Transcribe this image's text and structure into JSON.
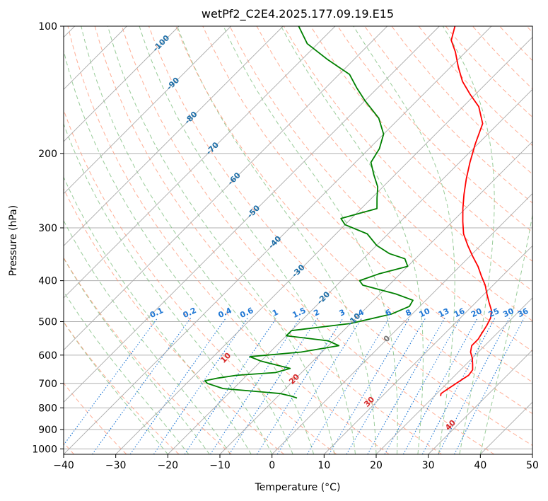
{
  "chart_data": {
    "type": "line",
    "title": "wetPf2_C2E4.2025.177.09.19.E15",
    "xlabel": "Temperature (°C)",
    "ylabel": "Pressure (hPa)",
    "xlim": [
      -40,
      50
    ],
    "ylim": [
      1030,
      100
    ],
    "y_scale": "log",
    "x_ticks": [
      -40,
      -30,
      -20,
      -10,
      0,
      10,
      20,
      30,
      40,
      50
    ],
    "y_ticks": [
      100,
      200,
      300,
      400,
      500,
      600,
      700,
      800,
      900,
      1000
    ],
    "grid": true,
    "skew_degrees": 45,
    "colors": {
      "temperature": "#ff0000",
      "dewpoint": "#008000",
      "isotherm": "#aaaaaa",
      "dry_adiabat": "#ff9a7a",
      "moist_adiabat": "#7fbf7f",
      "mixing_ratio": "#1f77d4",
      "isotherm_label": "#1f6fa8",
      "dry_adiabat_label": "#d62728"
    },
    "series": [
      {
        "points": [
          [
            21.2,
            750
          ],
          [
            20.8,
            740
          ],
          [
            21.0,
            730
          ],
          [
            21.5,
            710
          ],
          [
            22.0,
            690
          ],
          [
            22.6,
            670
          ],
          [
            22.3,
            650
          ],
          [
            21.2,
            630
          ],
          [
            20.0,
            610
          ],
          [
            18.5,
            590
          ],
          [
            17.5,
            570
          ],
          [
            17.5,
            550
          ],
          [
            17.0,
            530
          ],
          [
            16.5,
            510
          ],
          [
            15.8,
            490
          ],
          [
            14.5,
            470
          ],
          [
            12.5,
            450
          ],
          [
            10.5,
            430
          ],
          [
            8.5,
            410
          ],
          [
            6.0,
            390
          ],
          [
            3.5,
            370
          ],
          [
            0.5,
            350
          ],
          [
            -2.5,
            330
          ],
          [
            -5.5,
            310
          ],
          [
            -8.0,
            290
          ],
          [
            -10.5,
            270
          ],
          [
            -13.0,
            250
          ],
          [
            -15.5,
            230
          ],
          [
            -18.0,
            210
          ],
          [
            -20.5,
            190
          ],
          [
            -23.0,
            170
          ],
          [
            -27.0,
            155
          ],
          [
            -31.0,
            145
          ],
          [
            -35.0,
            135
          ],
          [
            -38.5,
            125
          ],
          [
            -42.0,
            115
          ],
          [
            -45.0,
            108
          ],
          [
            -47.0,
            100
          ]
        ]
      },
      {
        "points": [
          [
            -6.0,
            758
          ],
          [
            -7.5,
            750
          ],
          [
            -10.0,
            740
          ],
          [
            -22.0,
            720
          ],
          [
            -26.0,
            700
          ],
          [
            -27.0,
            690
          ],
          [
            -25.0,
            680
          ],
          [
            -22.0,
            670
          ],
          [
            -15.0,
            660
          ],
          [
            -13.0,
            645
          ],
          [
            -20.0,
            620
          ],
          [
            -23.0,
            605
          ],
          [
            -14.0,
            590
          ],
          [
            -8.0,
            570
          ],
          [
            -11.0,
            555
          ],
          [
            -20.0,
            540
          ],
          [
            -20.0,
            525
          ],
          [
            -10.0,
            505
          ],
          [
            -4.0,
            480
          ],
          [
            -2.0,
            460
          ],
          [
            -2.5,
            445
          ],
          [
            -7.0,
            430
          ],
          [
            -15.0,
            410
          ],
          [
            -16.5,
            400
          ],
          [
            -14.0,
            385
          ],
          [
            -10.0,
            370
          ],
          [
            -12.0,
            355
          ],
          [
            -16.0,
            345
          ],
          [
            -20.0,
            330
          ],
          [
            -24.0,
            310
          ],
          [
            -30.0,
            295
          ],
          [
            -32.0,
            285
          ],
          [
            -27.0,
            270
          ],
          [
            -29.0,
            255
          ],
          [
            -31.0,
            240
          ],
          [
            -34.0,
            225
          ],
          [
            -37.0,
            210
          ],
          [
            -38.0,
            195
          ],
          [
            -40.0,
            180
          ],
          [
            -44.0,
            165
          ],
          [
            -50.0,
            150
          ],
          [
            -54.0,
            140
          ],
          [
            -58.0,
            130
          ],
          [
            -65.0,
            120
          ],
          [
            -72.0,
            110
          ],
          [
            -77.0,
            100
          ]
        ]
      }
    ],
    "isotherm_labels": [
      {
        "text": "-100",
        "t": -100,
        "p": 110
      },
      {
        "text": "-90",
        "t": -90,
        "p": 137
      },
      {
        "text": "-80",
        "t": -80,
        "p": 165
      },
      {
        "text": "-70",
        "t": -70,
        "p": 195
      },
      {
        "text": "-60",
        "t": -60,
        "p": 230
      },
      {
        "text": "-50",
        "t": -50,
        "p": 275
      },
      {
        "text": "-40",
        "t": -40,
        "p": 325
      },
      {
        "text": "-30",
        "t": -30,
        "p": 380
      },
      {
        "text": "-20",
        "t": -20,
        "p": 440
      },
      {
        "text": "-10",
        "t": -10,
        "p": 495
      },
      {
        "text": "0",
        "t": 0,
        "p": 550
      }
    ],
    "dry_adiabat_labels": [
      {
        "text": "10",
        "theta": 10,
        "p": 610
      },
      {
        "text": "20",
        "theta": 20,
        "p": 685
      },
      {
        "text": "30",
        "theta": 30,
        "p": 775
      },
      {
        "text": "40",
        "theta": 40,
        "p": 880
      }
    ],
    "mixing_ratio_labels": [
      "0.1",
      "0.2",
      "0.4",
      "0.6",
      "1",
      "1.5",
      "2",
      "3",
      "4",
      "6",
      "8",
      "10",
      "13",
      "16",
      "20",
      "25",
      "30",
      "36"
    ],
    "mixing_ratio_label_p": 490
  }
}
